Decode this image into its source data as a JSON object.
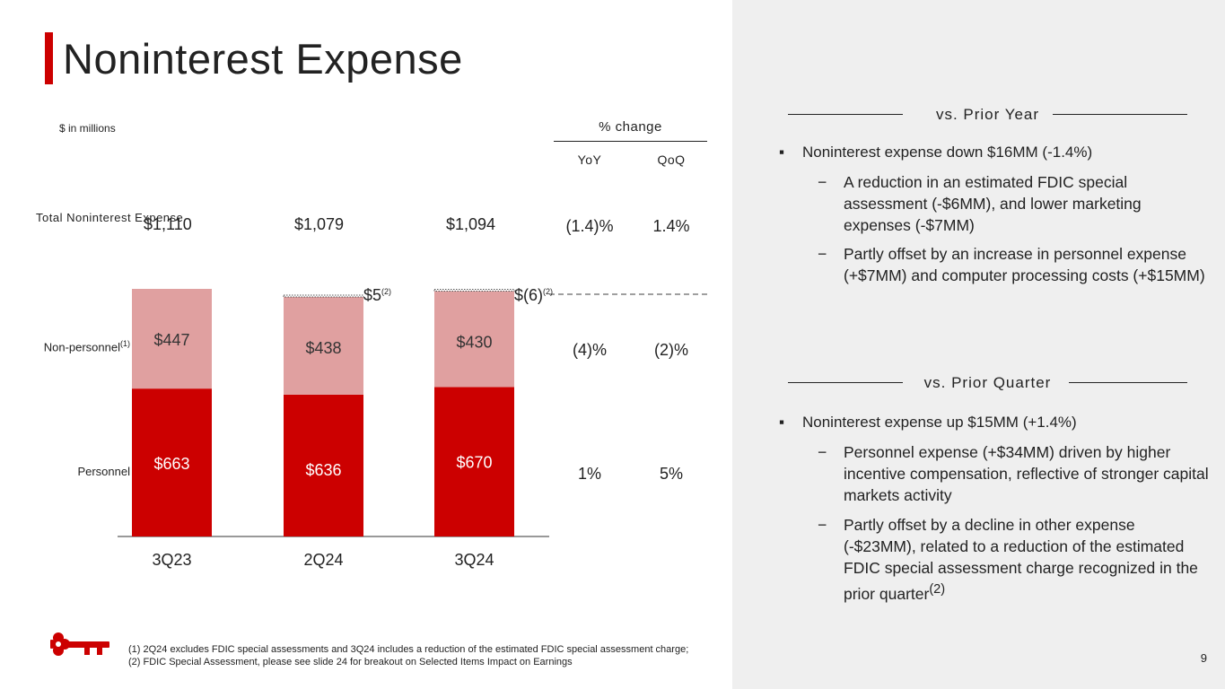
{
  "page_title": "Noninterest Expense",
  "units": "$ in millions",
  "pct_change": {
    "label": "% change",
    "columns": [
      "YoY",
      "QoQ"
    ],
    "rows": {
      "total": [
        "(1.4)%",
        "1.4%"
      ],
      "non_personnel": [
        "(4)%",
        "(2)%"
      ],
      "personnel": [
        "1%",
        "5%"
      ]
    }
  },
  "row_labels": {
    "total": "Total Noninterest Expense",
    "non_personnel": "Non-personnel",
    "non_personnel_note": "(1)",
    "personnel": "Personnel"
  },
  "totals": [
    "$1,110",
    "$1,079",
    "$1,094"
  ],
  "chart_data": {
    "type": "bar",
    "stacked": true,
    "categories": [
      "3Q23",
      "2Q24",
      "3Q24"
    ],
    "series": [
      {
        "name": "Personnel",
        "values": [
          663,
          636,
          670
        ],
        "labels": [
          "$663",
          "$636",
          "$670"
        ],
        "color": "#cc0000"
      },
      {
        "name": "Non-personnel",
        "values": [
          447,
          438,
          430
        ],
        "labels": [
          "$447",
          "$438",
          "$430"
        ],
        "color": "#e0a0a0"
      }
    ],
    "fdic_adjustments": [
      {
        "category": "2Q24",
        "value": 5,
        "label": "$5",
        "note": "(2)"
      },
      {
        "category": "3Q24",
        "value": -6,
        "label": "$(6)",
        "note": "(2)"
      }
    ],
    "ylim": [
      0,
      1110
    ]
  },
  "footnotes": [
    "(1) 2Q24 excludes FDIC special assessments and 3Q24 includes a reduction of the estimated FDIC special assessment charge;",
    "(2) FDIC Special Assessment, please see slide 24 for breakout on Selected Items Impact on Earnings"
  ],
  "right_panel": {
    "prior_year": {
      "heading": "vs. Prior Year",
      "bullet": "Noninterest expense down $16MM (-1.4%)",
      "subs": [
        "A reduction in an estimated FDIC special assessment (-$6MM), and lower marketing expenses (-$7MM)",
        "Partly offset by an increase in personnel expense (+$7MM) and computer processing costs (+$15MM)"
      ]
    },
    "prior_quarter": {
      "heading": "vs. Prior Quarter",
      "bullet": "Noninterest expense up $15MM (+1.4%)",
      "subs": [
        "Personnel expense (+$34MM) driven by higher incentive compensation, reflective of stronger capital markets activity",
        "Partly offset by a decline in other expense (-$23MM), related to a reduction of the estimated FDIC special assessment charge recognized in the prior quarter"
      ],
      "sub_note": "(2)"
    }
  },
  "bullet_mark": "▪",
  "sub_mark": "−",
  "page_number": "9",
  "colors": {
    "accent": "#cc0000",
    "light_bar": "#e0a0a0",
    "panel": "#efefef"
  }
}
